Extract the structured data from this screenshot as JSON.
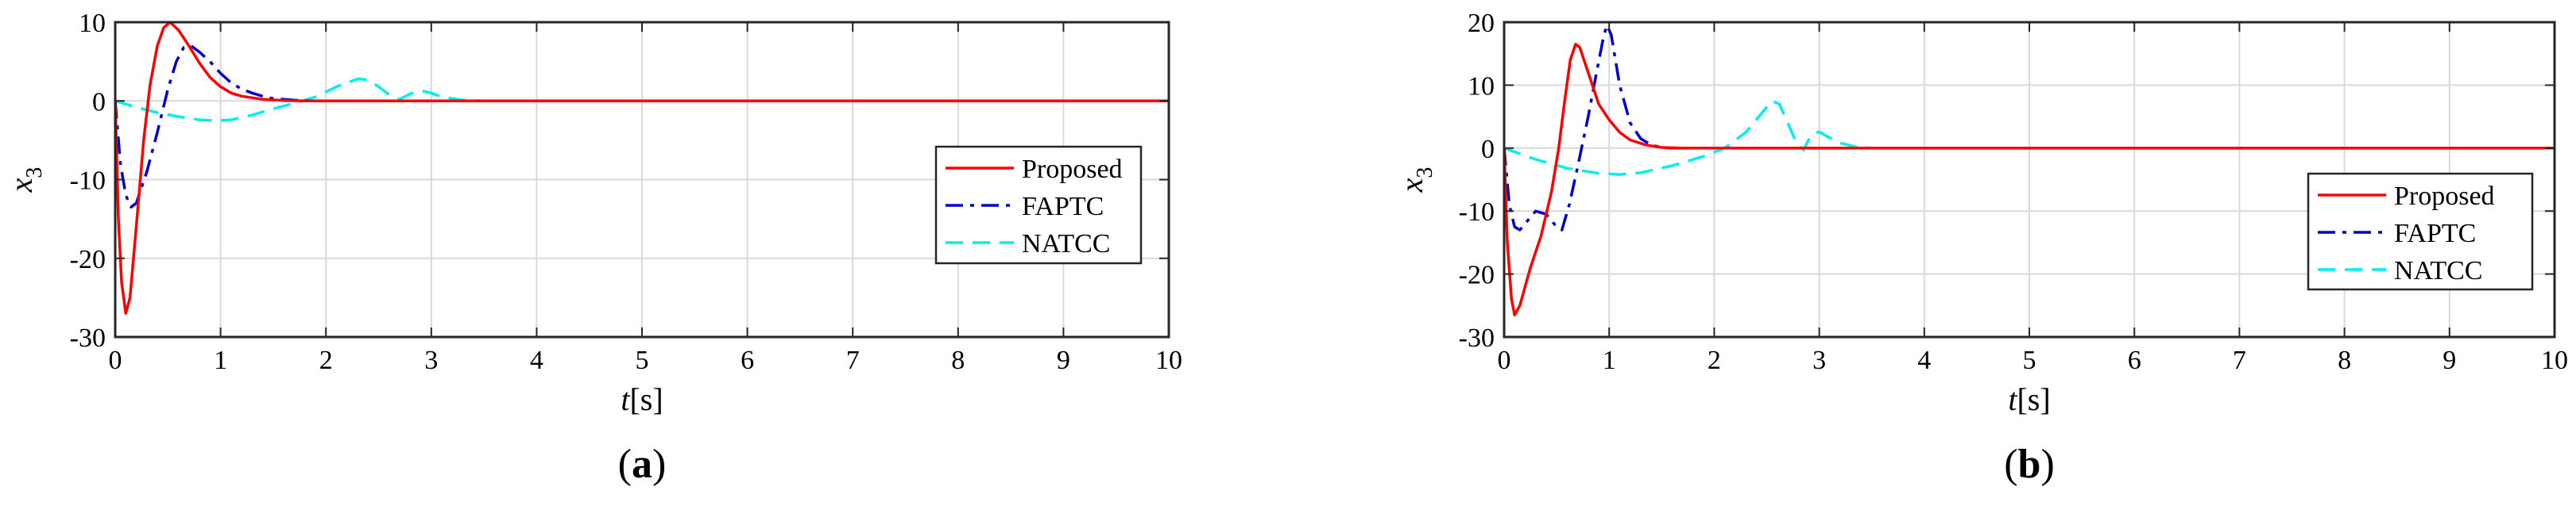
{
  "chart_data": [
    {
      "type": "line",
      "panel_label": "a",
      "xlabel": {
        "var": "t",
        "unit": "[s]"
      },
      "ylabel": {
        "var": "x",
        "sub": "3"
      },
      "xlim": [
        0,
        10
      ],
      "ylim": [
        -30,
        10
      ],
      "xticks": [
        0,
        1,
        2,
        3,
        4,
        5,
        6,
        7,
        8,
        9,
        10
      ],
      "yticks": [
        -30,
        -20,
        -10,
        0,
        10
      ],
      "grid": true,
      "legend_position": "center-right",
      "series": [
        {
          "name": "Proposed",
          "color": "#ff0000",
          "dash": "solid",
          "points": [
            [
              0,
              0
            ],
            [
              0.03,
              -15
            ],
            [
              0.06,
              -23
            ],
            [
              0.1,
              -27
            ],
            [
              0.14,
              -25
            ],
            [
              0.2,
              -16
            ],
            [
              0.27,
              -5
            ],
            [
              0.33,
              2
            ],
            [
              0.4,
              7
            ],
            [
              0.46,
              9.3
            ],
            [
              0.52,
              10
            ],
            [
              0.6,
              9
            ],
            [
              0.7,
              7
            ],
            [
              0.8,
              4.8
            ],
            [
              0.9,
              3
            ],
            [
              1.0,
              1.8
            ],
            [
              1.1,
              1.0
            ],
            [
              1.2,
              0.6
            ],
            [
              1.4,
              0.2
            ],
            [
              1.6,
              0.05
            ],
            [
              1.8,
              0
            ],
            [
              10,
              0
            ]
          ]
        },
        {
          "name": "FAPTC",
          "color": "#0000cc",
          "dash": "dashdot",
          "points": [
            [
              0,
              0
            ],
            [
              0.05,
              -8
            ],
            [
              0.1,
              -12
            ],
            [
              0.15,
              -13.5
            ],
            [
              0.2,
              -13
            ],
            [
              0.3,
              -9
            ],
            [
              0.4,
              -4
            ],
            [
              0.5,
              1.5
            ],
            [
              0.58,
              5
            ],
            [
              0.65,
              6.8
            ],
            [
              0.72,
              7
            ],
            [
              0.8,
              6.2
            ],
            [
              0.9,
              5
            ],
            [
              1.0,
              3.5
            ],
            [
              1.1,
              2.3
            ],
            [
              1.2,
              1.5
            ],
            [
              1.3,
              1.0
            ],
            [
              1.4,
              0.6
            ],
            [
              1.5,
              0.3
            ],
            [
              1.7,
              0.1
            ],
            [
              1.9,
              0
            ],
            [
              10,
              0
            ]
          ]
        },
        {
          "name": "NATCC",
          "color": "#00eeee",
          "dash": "dashed",
          "points": [
            [
              0,
              0
            ],
            [
              0.2,
              -0.8
            ],
            [
              0.4,
              -1.5
            ],
            [
              0.6,
              -2.0
            ],
            [
              0.8,
              -2.4
            ],
            [
              0.95,
              -2.5
            ],
            [
              1.1,
              -2.4
            ],
            [
              1.3,
              -1.8
            ],
            [
              1.5,
              -1.0
            ],
            [
              1.7,
              -0.3
            ],
            [
              1.9,
              0.5
            ],
            [
              2.1,
              1.8
            ],
            [
              2.3,
              2.8
            ],
            [
              2.4,
              2.7
            ],
            [
              2.5,
              1.8
            ],
            [
              2.6,
              0.8
            ],
            [
              2.7,
              0.2
            ],
            [
              2.8,
              0.9
            ],
            [
              2.9,
              1.3
            ],
            [
              3.0,
              1.0
            ],
            [
              3.1,
              0.5
            ],
            [
              3.3,
              0.1
            ],
            [
              3.5,
              0
            ],
            [
              10,
              0
            ]
          ]
        }
      ]
    },
    {
      "type": "line",
      "panel_label": "b",
      "xlabel": {
        "var": "t",
        "unit": "[s]"
      },
      "ylabel": {
        "var": "x",
        "sub": "3"
      },
      "xlim": [
        0,
        10
      ],
      "ylim": [
        -30,
        20
      ],
      "xticks": [
        0,
        1,
        2,
        3,
        4,
        5,
        6,
        7,
        8,
        9,
        10
      ],
      "yticks": [
        -30,
        -20,
        -10,
        0,
        10,
        20
      ],
      "grid": true,
      "legend_position": "center-right",
      "series": [
        {
          "name": "Proposed",
          "color": "#ff0000",
          "dash": "solid",
          "points": [
            [
              0,
              0
            ],
            [
              0.03,
              -15
            ],
            [
              0.07,
              -24
            ],
            [
              0.1,
              -26.5
            ],
            [
              0.15,
              -25
            ],
            [
              0.25,
              -19
            ],
            [
              0.35,
              -14
            ],
            [
              0.45,
              -7
            ],
            [
              0.52,
              0
            ],
            [
              0.58,
              8
            ],
            [
              0.63,
              14
            ],
            [
              0.68,
              16.5
            ],
            [
              0.72,
              16
            ],
            [
              0.8,
              12
            ],
            [
              0.9,
              7
            ],
            [
              1.0,
              4.5
            ],
            [
              1.1,
              2.5
            ],
            [
              1.2,
              1.3
            ],
            [
              1.35,
              0.5
            ],
            [
              1.5,
              0.1
            ],
            [
              1.7,
              0
            ],
            [
              10,
              0
            ]
          ]
        },
        {
          "name": "FAPTC",
          "color": "#0000cc",
          "dash": "dashdot",
          "points": [
            [
              0,
              0
            ],
            [
              0.05,
              -9
            ],
            [
              0.1,
              -12.5
            ],
            [
              0.15,
              -13
            ],
            [
              0.2,
              -12
            ],
            [
              0.3,
              -10
            ],
            [
              0.4,
              -10.5
            ],
            [
              0.5,
              -12.5
            ],
            [
              0.55,
              -13
            ],
            [
              0.62,
              -9
            ],
            [
              0.7,
              -3
            ],
            [
              0.8,
              5
            ],
            [
              0.88,
              12
            ],
            [
              0.95,
              18
            ],
            [
              0.98,
              19.5
            ],
            [
              1.02,
              18
            ],
            [
              1.1,
              10
            ],
            [
              1.2,
              4
            ],
            [
              1.3,
              1.5
            ],
            [
              1.4,
              0.5
            ],
            [
              1.5,
              0.1
            ],
            [
              1.6,
              0
            ],
            [
              10,
              0
            ]
          ]
        },
        {
          "name": "NATCC",
          "color": "#00eeee",
          "dash": "dashed",
          "points": [
            [
              0,
              0
            ],
            [
              0.3,
              -1.8
            ],
            [
              0.6,
              -3.2
            ],
            [
              0.9,
              -4.0
            ],
            [
              1.1,
              -4.2
            ],
            [
              1.3,
              -3.9
            ],
            [
              1.6,
              -2.8
            ],
            [
              1.9,
              -1.3
            ],
            [
              2.1,
              0
            ],
            [
              2.3,
              2.5
            ],
            [
              2.45,
              5.5
            ],
            [
              2.55,
              7.5
            ],
            [
              2.62,
              7.0
            ],
            [
              2.7,
              4.0
            ],
            [
              2.78,
              1.0
            ],
            [
              2.85,
              -0.3
            ],
            [
              2.92,
              2.0
            ],
            [
              3.0,
              2.6
            ],
            [
              3.08,
              1.8
            ],
            [
              3.2,
              0.8
            ],
            [
              3.35,
              0.2
            ],
            [
              3.5,
              0
            ],
            [
              10,
              0
            ]
          ]
        }
      ]
    }
  ]
}
